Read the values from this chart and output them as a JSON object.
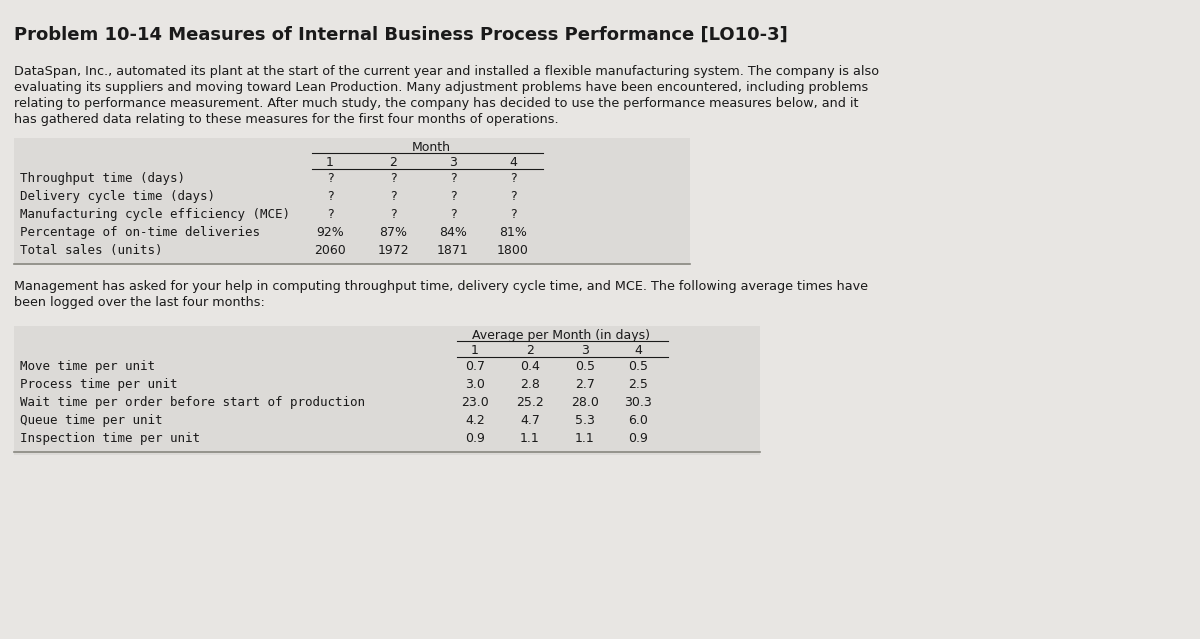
{
  "title": "Problem 10-14 Measures of Internal Business Process Performance [LO10-3]",
  "paragraph1_lines": [
    "DataSpan, Inc., automated its plant at the start of the current year and installed a flexible manufacturing system. The company is also",
    "evaluating its suppliers and moving toward Lean Production. Many adjustment problems have been encountered, including problems",
    "relating to performance measurement. After much study, the company has decided to use the performance measures below, and it",
    "has gathered data relating to these measures for the first four months of operations."
  ],
  "paragraph2_lines": [
    "Management has asked for your help in computing throughput time, delivery cycle time, and MCE. The following average times have",
    "been logged over the last four months:"
  ],
  "table1_header_main": "Month",
  "table1_months": [
    "1",
    "2",
    "3",
    "4"
  ],
  "table1_rows": [
    [
      "Throughput time (days)",
      "?",
      "?",
      "?",
      "?"
    ],
    [
      "Delivery cycle time (days)",
      "?",
      "?",
      "?",
      "?"
    ],
    [
      "Manufacturing cycle efficiency (MCE)",
      "?",
      "?",
      "?",
      "?"
    ],
    [
      "Percentage of on-time deliveries",
      "92%",
      "87%",
      "84%",
      "81%"
    ],
    [
      "Total sales (units)",
      "2060",
      "1972",
      "1871",
      "1800"
    ]
  ],
  "table2_header_main": "Average per Month (in days)",
  "table2_months": [
    "1",
    "2",
    "3",
    "4"
  ],
  "table2_rows": [
    [
      "Move time per unit",
      "0.7",
      "0.4",
      "0.5",
      "0.5"
    ],
    [
      "Process time per unit",
      "3.0",
      "2.8",
      "2.7",
      "2.5"
    ],
    [
      "Wait time per order before start of production",
      "23.0",
      "25.2",
      "28.0",
      "30.3"
    ],
    [
      "Queue time per unit",
      "4.2",
      "4.7",
      "5.3",
      "6.0"
    ],
    [
      "Inspection time per unit",
      "0.9",
      "1.1",
      "1.1",
      "0.9"
    ]
  ],
  "bg_color": "#e8e6e3",
  "table_bg_light": "#dcdad7",
  "table_header_bg": "#c8c6c3",
  "text_color": "#1a1a1a",
  "title_fontsize": 13.0,
  "body_fontsize": 9.2,
  "table_label_fontsize": 9.0,
  "table_data_fontsize": 9.0,
  "table_header_fontsize": 9.0
}
